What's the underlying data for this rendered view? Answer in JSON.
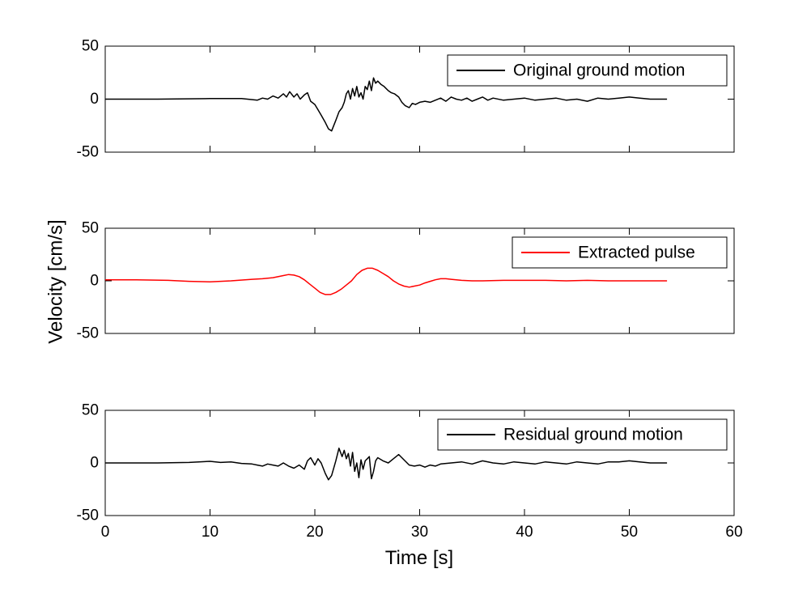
{
  "figure": {
    "ylabel": "Velocity [cm/s]",
    "xlabel": "Time [s]"
  },
  "chart_data": [
    {
      "type": "line",
      "legend": "Original ground motion",
      "color": "#000000",
      "xlim": [
        0,
        60
      ],
      "ylim": [
        -50,
        50
      ],
      "xticks": [
        0,
        10,
        20,
        30,
        40,
        50,
        60
      ],
      "yticks": [
        -50,
        0,
        50
      ],
      "show_xticklabels": false,
      "legend_position": "top-right",
      "series": [
        {
          "name": "Original ground motion",
          "x": [
            0,
            5,
            10,
            13,
            14.5,
            15,
            15.5,
            16,
            16.5,
            17,
            17.3,
            17.6,
            18,
            18.3,
            18.6,
            19,
            19.3,
            19.6,
            20,
            20.3,
            20.6,
            21,
            21.3,
            21.6,
            22,
            22.3,
            22.6,
            22.8,
            23,
            23.2,
            23.4,
            23.6,
            23.8,
            24,
            24.2,
            24.4,
            24.6,
            24.8,
            25,
            25.2,
            25.4,
            25.6,
            25.8,
            26,
            26.3,
            26.6,
            27,
            27.3,
            27.6,
            28,
            28.3,
            28.6,
            29,
            29.3,
            29.6,
            30,
            30.5,
            31,
            31.5,
            32,
            32.5,
            33,
            33.5,
            34,
            34.5,
            35,
            35.5,
            36,
            36.5,
            37,
            38,
            39,
            40,
            41,
            42,
            43,
            44,
            45,
            46,
            47,
            48,
            49,
            50,
            51,
            52,
            53,
            53.6
          ],
          "y": [
            0,
            0,
            0.5,
            0.5,
            -1,
            1,
            0,
            3,
            1,
            5,
            2,
            7,
            2,
            5,
            0,
            4,
            6,
            -2,
            -5,
            -10,
            -15,
            -22,
            -28,
            -30,
            -20,
            -12,
            -8,
            -3,
            5,
            8,
            0,
            10,
            3,
            12,
            2,
            6,
            0,
            12,
            9,
            17,
            8,
            20,
            15,
            17,
            14,
            12,
            8,
            6,
            5,
            2,
            -3,
            -6,
            -8,
            -4,
            -5,
            -3,
            -2,
            -3,
            -1,
            1,
            -2,
            2,
            0,
            -1,
            1,
            -2,
            0,
            2,
            -1,
            1,
            -1,
            0,
            1,
            -1,
            0,
            1,
            -1,
            0,
            -2,
            1,
            0,
            1,
            2,
            1,
            0,
            0,
            0
          ]
        }
      ]
    },
    {
      "type": "line",
      "legend": "Extracted pulse",
      "color": "#ff0000",
      "xlim": [
        0,
        60
      ],
      "ylim": [
        -50,
        50
      ],
      "xticks": [
        0,
        10,
        20,
        30,
        40,
        50,
        60
      ],
      "yticks": [
        -50,
        0,
        50
      ],
      "show_xticklabels": false,
      "legend_position": "top-right",
      "series": [
        {
          "name": "Extracted pulse",
          "x": [
            0,
            3,
            6,
            8,
            10,
            12,
            14,
            15,
            16,
            17,
            17.5,
            18,
            18.5,
            19,
            19.5,
            20,
            20.5,
            21,
            21.5,
            22,
            22.5,
            23,
            23.5,
            24,
            24.5,
            25,
            25.5,
            26,
            26.5,
            27,
            27.5,
            28,
            28.5,
            29,
            29.5,
            30,
            30.5,
            31,
            31.5,
            32,
            32.5,
            33,
            34,
            35,
            36,
            38,
            40,
            42,
            44,
            46,
            48,
            50,
            52,
            53.6
          ],
          "y": [
            1,
            1,
            0.5,
            -0.5,
            -1,
            0,
            1.5,
            2,
            3,
            5,
            6,
            5.5,
            4,
            1,
            -3,
            -7,
            -11,
            -13,
            -13,
            -11,
            -8,
            -4,
            0,
            6,
            10,
            12,
            12,
            10,
            7,
            4,
            0,
            -3,
            -5,
            -6,
            -5,
            -4,
            -2,
            -0.5,
            1,
            2,
            2,
            1.5,
            0.5,
            0,
            0,
            0.5,
            0.5,
            0.5,
            0,
            0.5,
            0,
            0,
            0,
            0
          ]
        }
      ]
    },
    {
      "type": "line",
      "legend": "Residual ground motion",
      "color": "#000000",
      "xlim": [
        0,
        60
      ],
      "ylim": [
        -50,
        50
      ],
      "xticks": [
        0,
        10,
        20,
        30,
        40,
        50,
        60
      ],
      "yticks": [
        -50,
        0,
        50
      ],
      "show_xticklabels": true,
      "legend_position": "top-right",
      "series": [
        {
          "name": "Residual ground motion",
          "x": [
            0,
            5,
            8,
            10,
            11,
            12,
            13,
            14,
            14.5,
            15,
            15.5,
            16,
            16.5,
            17,
            17.5,
            18,
            18.5,
            19,
            19.3,
            19.6,
            20,
            20.3,
            20.6,
            21,
            21.3,
            21.6,
            22,
            22.3,
            22.6,
            22.8,
            23,
            23.2,
            23.4,
            23.6,
            23.8,
            24,
            24.2,
            24.4,
            24.6,
            24.8,
            25,
            25.2,
            25.4,
            25.6,
            25.8,
            26,
            26.5,
            27,
            27.5,
            28,
            28.5,
            29,
            29.5,
            30,
            30.5,
            31,
            31.5,
            32,
            33,
            34,
            35,
            36,
            37,
            38,
            39,
            40,
            41,
            42,
            43,
            44,
            45,
            46,
            47,
            48,
            49,
            50,
            51,
            52,
            53.6
          ],
          "y": [
            0,
            0,
            0.5,
            1.5,
            0.5,
            1,
            -0.5,
            -1,
            -2,
            -3,
            -1,
            -2,
            -3,
            0,
            -3,
            -5,
            -2,
            -6,
            2,
            5,
            -2,
            4,
            0,
            -10,
            -16,
            -12,
            2,
            14,
            6,
            12,
            4,
            9,
            -3,
            10,
            -8,
            0,
            -14,
            3,
            -6,
            2,
            4,
            6,
            -15,
            -8,
            2,
            5,
            2,
            0,
            4,
            8,
            3,
            -2,
            -3,
            -2,
            -4,
            -2,
            -3,
            -1,
            0,
            1,
            -1,
            2,
            0,
            -1,
            1,
            0,
            -1,
            1,
            0,
            -1,
            1,
            0,
            -1,
            1,
            1,
            2,
            1,
            0,
            0
          ]
        }
      ]
    }
  ]
}
